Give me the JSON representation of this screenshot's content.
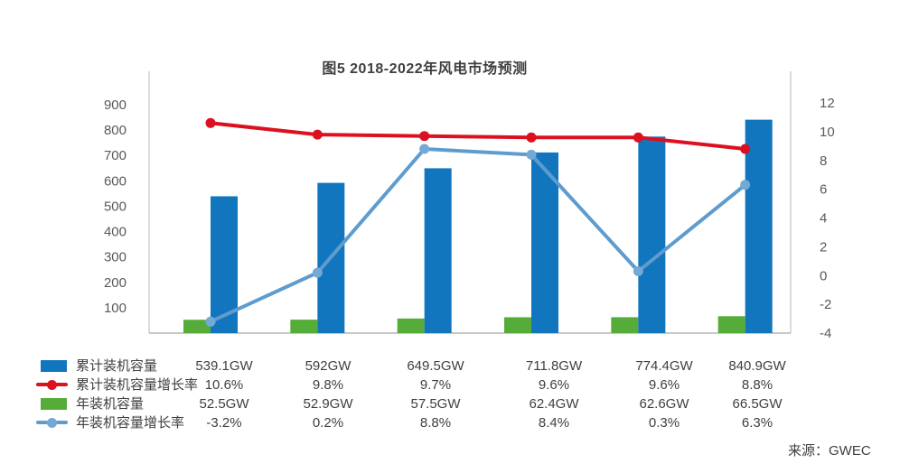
{
  "title": "图5 2018-2022年风电市场预测",
  "source": "来源：GWEC",
  "colors": {
    "bar_cumulative": "#1176BE",
    "bar_annual": "#55AC39",
    "line_cumulative_growth": "#DB1120",
    "line_cumulative_marker": "#DB1120",
    "line_annual_growth": "#5E9CCF",
    "line_annual_marker": "#74A9D6",
    "axis_text": "#595959",
    "text": "#3F3F3F",
    "plot_border": "#C9C9C9",
    "baseline": "#A6A6A6"
  },
  "chart_data": {
    "type": "combo (grouped bars + two lines, dual value axes, no x labels)",
    "columns": 6,
    "grid": false,
    "legend_position": "bottom-left table",
    "left_axis": {
      "unit": "GW",
      "ticks": [
        900,
        800,
        700,
        600,
        500,
        400,
        300,
        200,
        100
      ],
      "min": 0,
      "max": 1028
    },
    "right_axis": {
      "unit": "%",
      "ticks": [
        12,
        10,
        8,
        6,
        4,
        2,
        0,
        -2,
        -4
      ],
      "min": -4,
      "max": 14.2
    },
    "series": [
      {
        "name": "累计装机容量",
        "type": "bar",
        "axis": "left",
        "values": [
          539.1,
          592,
          649.5,
          711.8,
          774.4,
          840.9
        ],
        "display": [
          "539.1GW",
          "592GW",
          "649.5GW",
          "711.8GW",
          "774.4GW",
          "840.9GW"
        ]
      },
      {
        "name": "累计装机容量增长率",
        "type": "line",
        "axis": "right",
        "values": [
          10.6,
          9.8,
          9.7,
          9.6,
          9.6,
          8.8
        ],
        "display": [
          "10.6%",
          "9.8%",
          "9.7%",
          "9.6%",
          "9.6%",
          "8.8%"
        ]
      },
      {
        "name": "年装机容量",
        "type": "bar",
        "axis": "left",
        "values": [
          52.5,
          52.9,
          57.5,
          62.4,
          62.6,
          66.5
        ],
        "display": [
          "52.5GW",
          "52.9GW",
          "57.5GW",
          "62.4GW",
          "62.6GW",
          "66.5GW"
        ]
      },
      {
        "name": "年装机容量增长率",
        "type": "line",
        "axis": "right",
        "values": [
          -3.2,
          0.2,
          8.8,
          8.4,
          0.3,
          6.3
        ],
        "display": [
          "-3.2%",
          "0.2%",
          "8.8%",
          "8.4%",
          "0.3%",
          "6.3%"
        ]
      }
    ]
  }
}
